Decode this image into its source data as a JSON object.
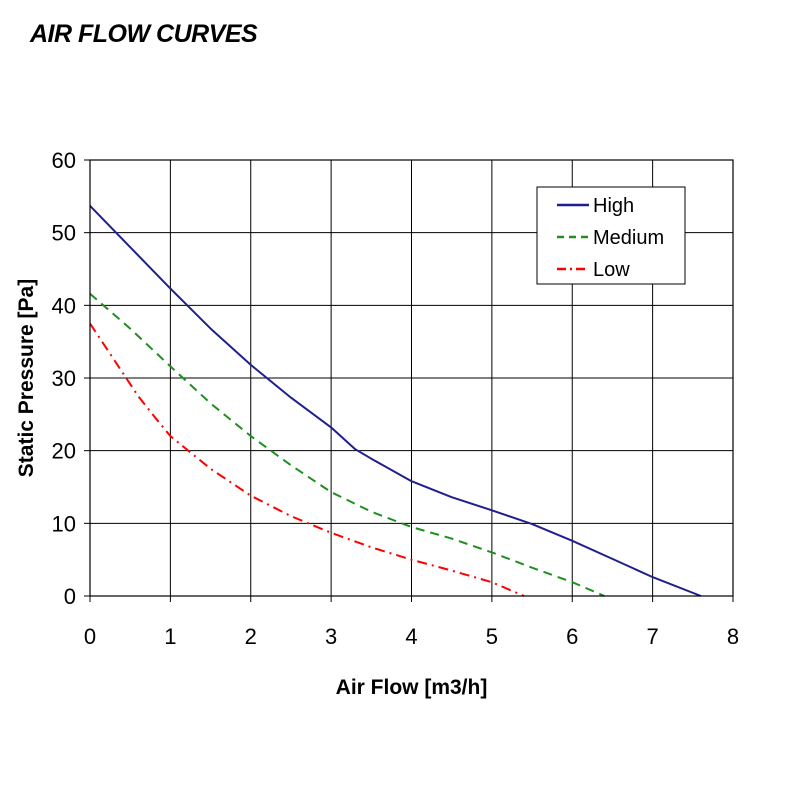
{
  "title": "AIR FLOW CURVES",
  "chart_data": {
    "type": "line",
    "xlabel": "Air Flow [m3/h]",
    "ylabel": "Static Pressure [Pa]",
    "xlim": [
      0,
      8
    ],
    "ylim": [
      0,
      60
    ],
    "xticks": [
      "0",
      "1",
      "2",
      "3",
      "4",
      "5",
      "6",
      "7",
      "8"
    ],
    "yticks": [
      "0",
      "10",
      "20",
      "30",
      "40",
      "50",
      "60"
    ],
    "grid": true,
    "legend_position": "top-right",
    "series": [
      {
        "name": "High",
        "color": "#1f1f8f",
        "dash": "solid",
        "points": [
          [
            0,
            53.7
          ],
          [
            0.5,
            48
          ],
          [
            1,
            42.3
          ],
          [
            1.5,
            36.8
          ],
          [
            2,
            31.8
          ],
          [
            2.5,
            27.3
          ],
          [
            3,
            23.2
          ],
          [
            3.3,
            20.2
          ],
          [
            3.5,
            18.9
          ],
          [
            4,
            15.8
          ],
          [
            4.5,
            13.6
          ],
          [
            5,
            11.8
          ],
          [
            5.5,
            9.9
          ],
          [
            6,
            7.6
          ],
          [
            6.5,
            5.1
          ],
          [
            7,
            2.6
          ],
          [
            7.6,
            0
          ]
        ]
      },
      {
        "name": "Medium",
        "color": "#1f8f1f",
        "dash": "dashed",
        "points": [
          [
            0,
            41.6
          ],
          [
            0.5,
            36.8
          ],
          [
            1,
            31.6
          ],
          [
            1.5,
            26.5
          ],
          [
            2,
            22
          ],
          [
            2.5,
            18
          ],
          [
            3,
            14.3
          ],
          [
            3.5,
            11.6
          ],
          [
            4,
            9.5
          ],
          [
            4.5,
            7.9
          ],
          [
            5,
            6
          ],
          [
            5.5,
            3.9
          ],
          [
            6,
            1.9
          ],
          [
            6.4,
            0
          ]
        ]
      },
      {
        "name": "Low",
        "color": "#ff0000",
        "dash": "dashdot",
        "points": [
          [
            0,
            37.5
          ],
          [
            0.3,
            32.5
          ],
          [
            0.6,
            27.5
          ],
          [
            0.8,
            24.7
          ],
          [
            1,
            22
          ],
          [
            1.5,
            17.5
          ],
          [
            2,
            13.8
          ],
          [
            2.5,
            11
          ],
          [
            3,
            8.7
          ],
          [
            3.5,
            6.7
          ],
          [
            4,
            5
          ],
          [
            4.5,
            3.5
          ],
          [
            5,
            1.9
          ],
          [
            5.4,
            0
          ]
        ]
      }
    ]
  }
}
